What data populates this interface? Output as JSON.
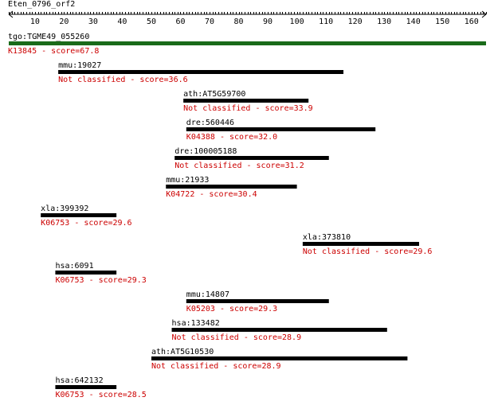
{
  "title": "Eten_0796_orf2",
  "axis": {
    "min": 1,
    "max": 165,
    "labels": [
      10,
      20,
      30,
      40,
      50,
      60,
      70,
      80,
      90,
      100,
      110,
      120,
      130,
      140,
      150,
      160
    ]
  },
  "colors": {
    "query_bar": "#1a6b1a",
    "hit_bar": "#000000",
    "hit_text": "#cc0000",
    "label_text": "#000000"
  },
  "query": {
    "name": "tgo:TGME49_055260",
    "start": 1,
    "end": 165,
    "annotation": "K13845 - score=67.8"
  },
  "hits": [
    {
      "name": "mmu:19027",
      "start": 18,
      "end": 116,
      "annotation": "Not classified - score=36.6"
    },
    {
      "name": "ath:AT5G59700",
      "start": 61,
      "end": 104,
      "annotation": "Not classified - score=33.9"
    },
    {
      "name": "dre:560446",
      "start": 62,
      "end": 127,
      "annotation": "K04388 - score=32.0"
    },
    {
      "name": "dre:100005188",
      "start": 58,
      "end": 111,
      "annotation": "Not classified - score=31.2"
    },
    {
      "name": "mmu:21933",
      "start": 55,
      "end": 100,
      "annotation": "K04722 - score=30.4"
    },
    {
      "name": "xla:399392",
      "start": 12,
      "end": 38,
      "annotation": "K06753 - score=29.6"
    },
    {
      "name": "xla:373810",
      "start": 102,
      "end": 142,
      "annotation": "Not classified - score=29.6"
    },
    {
      "name": "hsa:6091",
      "start": 17,
      "end": 38,
      "annotation": "K06753 - score=29.3"
    },
    {
      "name": "mmu:14807",
      "start": 62,
      "end": 111,
      "annotation": "K05203 - score=29.3"
    },
    {
      "name": "hsa:133482",
      "start": 57,
      "end": 131,
      "annotation": "Not classified - score=28.9"
    },
    {
      "name": "ath:AT5G10530",
      "start": 50,
      "end": 138,
      "annotation": "Not classified - score=28.9"
    },
    {
      "name": "hsa:642132",
      "start": 17,
      "end": 38,
      "annotation": "K06753 - score=28.5"
    }
  ]
}
